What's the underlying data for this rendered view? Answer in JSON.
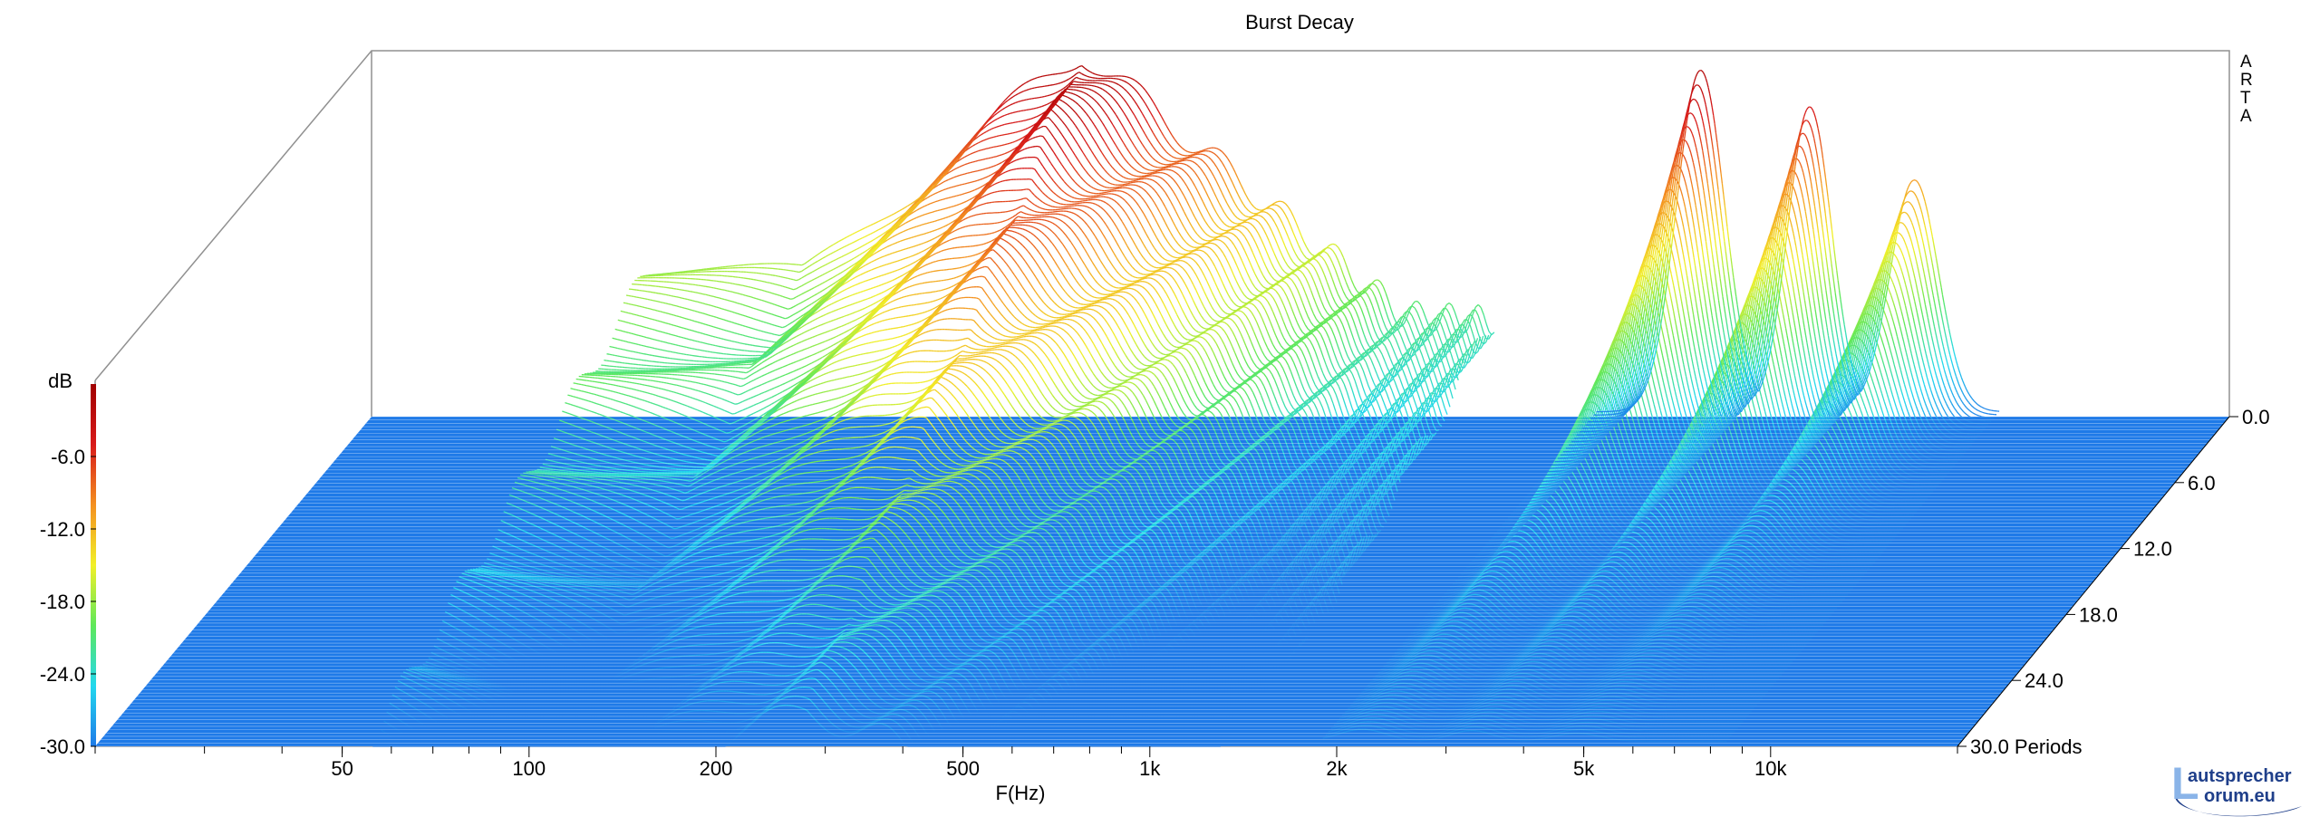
{
  "chart_data": {
    "type": "waterfall-3d",
    "title": "Burst Decay",
    "watermark_vertical": [
      "A",
      "R",
      "T",
      "A"
    ],
    "xlabel": "F(Hz)",
    "x_scale": "log",
    "x_ticks": [
      {
        "value": 50,
        "label": "50"
      },
      {
        "value": 100,
        "label": "100"
      },
      {
        "value": 200,
        "label": "200"
      },
      {
        "value": 500,
        "label": "500"
      },
      {
        "value": 1000,
        "label": "1k"
      },
      {
        "value": 2000,
        "label": "2k"
      },
      {
        "value": 5000,
        "label": "5k"
      },
      {
        "value": 10000,
        "label": "10k"
      }
    ],
    "xlim": [
      20,
      20000
    ],
    "z_axis": {
      "unit_label": "Periods",
      "ticks": [
        {
          "value": 0,
          "label": "0.0"
        },
        {
          "value": 6,
          "label": "6.0"
        },
        {
          "value": 12,
          "label": "12.0"
        },
        {
          "value": 18,
          "label": "18.0"
        },
        {
          "value": 24,
          "label": "24.0"
        },
        {
          "value": 30,
          "label": "30.0"
        }
      ],
      "range": [
        0,
        30
      ]
    },
    "color_scale": {
      "label": "dB",
      "ticks": [
        "-6.0",
        "-12.0",
        "-18.0",
        "-24.0",
        "-30.0"
      ],
      "range": [
        -30,
        0
      ],
      "colors": [
        "#1e7ae8",
        "#22d8ee",
        "#5ee85a",
        "#f2f028",
        "#f49020",
        "#d81a1a",
        "#a00000"
      ]
    },
    "floor_color": "#1e7ae8",
    "series": [
      {
        "component": "low-frequency hump",
        "peak_freq_hz": 280,
        "peak_db": 0,
        "edge_freqs_hz": [
          56,
          1300
        ],
        "low_edge_db": -18
      },
      {
        "component": "resonance 1",
        "peak_freq_hz": 2800,
        "peak_db": -2
      },
      {
        "component": "resonance 2",
        "peak_freq_hz": 4200,
        "peak_db": -5
      },
      {
        "component": "resonance 3",
        "peak_freq_hz": 6200,
        "peak_db": -11
      }
    ],
    "slices": 100
  },
  "logo": {
    "line1": "autsprecher",
    "line2": "orum.eu",
    "letter": "L"
  }
}
